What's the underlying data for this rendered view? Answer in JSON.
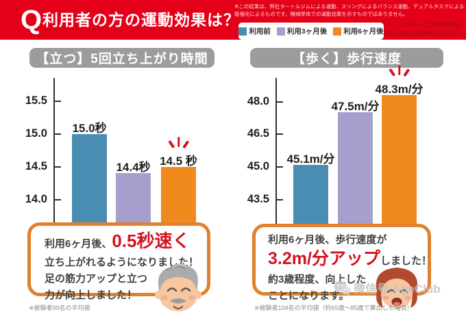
{
  "header": {
    "q_mark": "Q",
    "title": "利用者の方の運動効果は？",
    "disclaimer_line1": "※この結果は、弊社タートルジムによる運動、スリングによるバランス運動、デュアルタスクによる認知機",
    "disclaimer_line2": "能強化によるものです。機械単体での運動効果を示すものではありません。",
    "note1": "※アシックススポーツ工学研究所調べ",
    "note2": "※数値、効果には個体差があります。"
  },
  "legend": {
    "items": [
      {
        "label": "利用前",
        "color": "#4a8db2"
      },
      {
        "label": "利用3ヶ月後",
        "color": "#a89ecd"
      },
      {
        "label": "利用6ヶ月後",
        "color": "#f08a1e"
      }
    ]
  },
  "chart_data": [
    {
      "type": "bar",
      "title": "【立つ】5回立ち上がり時間",
      "categories": [
        "利用前",
        "利用3ヶ月後",
        "利用6ヶ月後"
      ],
      "values": [
        15.0,
        14.4,
        14.5
      ],
      "value_labels": [
        "15.0秒",
        "14.4秒",
        "14.5 秒"
      ],
      "unit": "秒",
      "yticks": [
        15.5,
        15.0,
        14.5,
        14.0
      ],
      "ylim": [
        13.54,
        15.79
      ],
      "bar_colors": [
        "#4a8db2",
        "#a89ecd",
        "#f08a1e"
      ],
      "emphasis_index": 2,
      "legend_position": "top",
      "grid": false
    },
    {
      "type": "bar",
      "title": "【歩く】歩行速度",
      "categories": [
        "利用前",
        "利用3ヶ月後",
        "利用6ヶ月後"
      ],
      "values": [
        45.1,
        47.5,
        48.3
      ],
      "value_labels": [
        "45.1m/分",
        "47.5m/分",
        "48.3m/分"
      ],
      "unit": "m/分",
      "yticks": [
        48.0,
        46.5,
        45.0,
        43.5
      ],
      "ylim": [
        42.1,
        48.9
      ],
      "bar_colors": [
        "#4a8db2",
        "#a89ecd",
        "#f08a1e"
      ],
      "emphasis_index": 2,
      "legend_position": "top",
      "grid": false
    }
  ],
  "callouts": {
    "left": {
      "prefix": "利用6ヶ月後、",
      "highlight": "0.5秒速く",
      "line2": "立ち上がれるようになりました！",
      "line3": "足の筋力アップと立つ",
      "line4": "力が向上しました！",
      "footnote": "※被験者99名の平均値"
    },
    "right": {
      "line1": "利用6ヶ月後、歩行速度が",
      "highlight": "3.2m/分アップ",
      "suffix": "しました！",
      "line3": "約3歳程度、向上した",
      "line4": "ことになります。",
      "footnote": "※被験者104名の平均値（約65歳～85歳で算出した場合）"
    }
  },
  "watermark": {
    "text": "微信号:AgeClub"
  },
  "colors": {
    "banner": "#e50019",
    "accent_red": "#d5121e",
    "box_border": "#e0812d",
    "title_pill": "#9c9c9c",
    "bar_before": "#4a8db2",
    "bar_3months": "#a89ecd",
    "bar_6months": "#f08a1e"
  }
}
